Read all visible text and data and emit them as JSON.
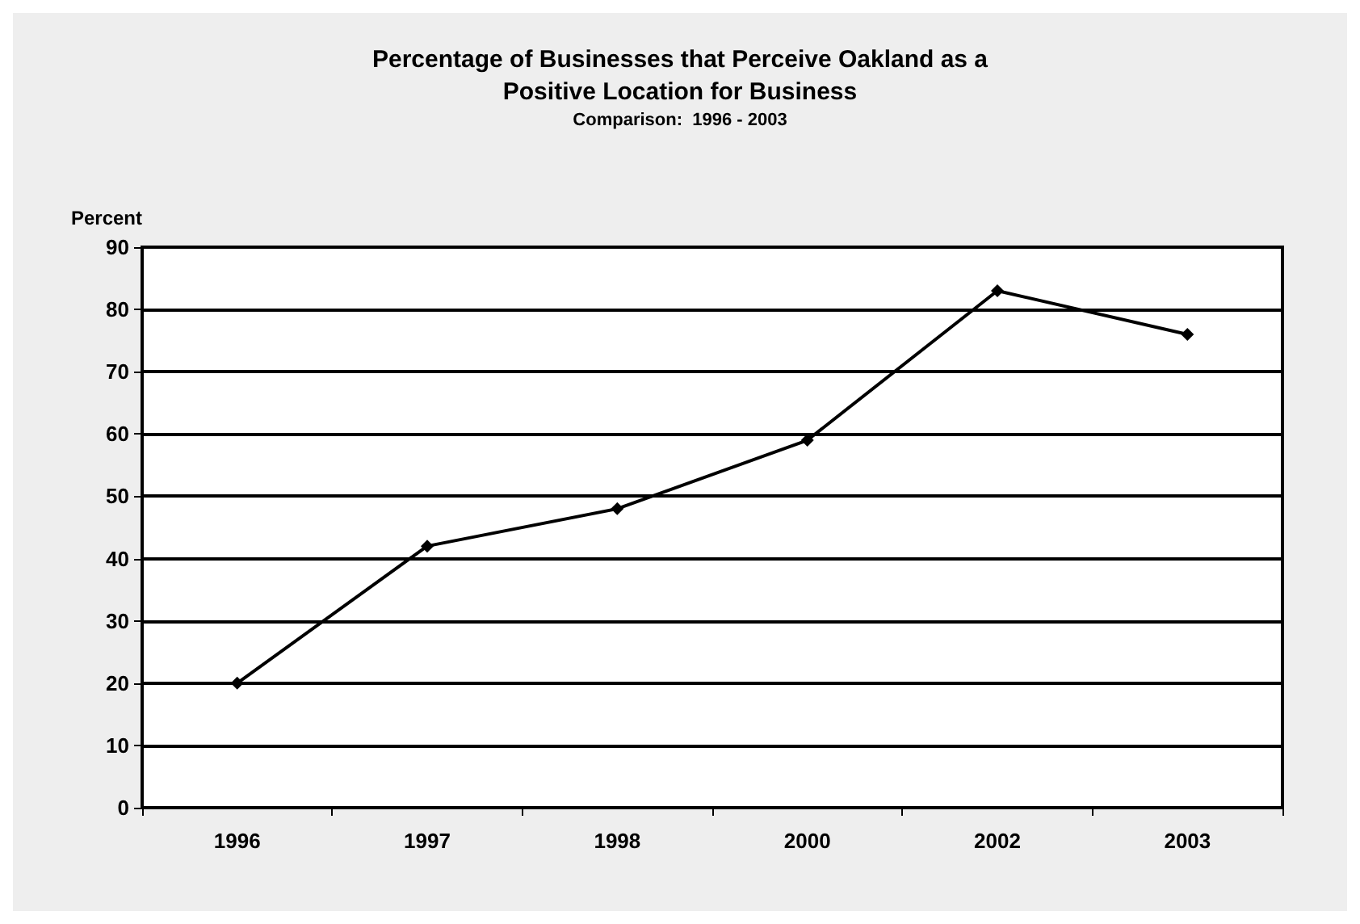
{
  "chart_data": {
    "type": "line",
    "title": "Percentage of Businesses that Perceive Oakland as a\nPositive Location for Business",
    "subtitle": "Comparison:  1996 - 2003",
    "ylabel": "Percent",
    "categories": [
      "1996",
      "1997",
      "1998",
      "2000",
      "2002",
      "2003"
    ],
    "series": [
      {
        "color": "#000000",
        "values": [
          20,
          42,
          48,
          59,
          83,
          76
        ]
      }
    ],
    "ylim": [
      0,
      90
    ],
    "yticks": [
      0,
      10,
      20,
      30,
      40,
      50,
      60,
      70,
      80,
      90
    ],
    "grid": "y",
    "marker": "diamond",
    "line_style": "solid"
  }
}
